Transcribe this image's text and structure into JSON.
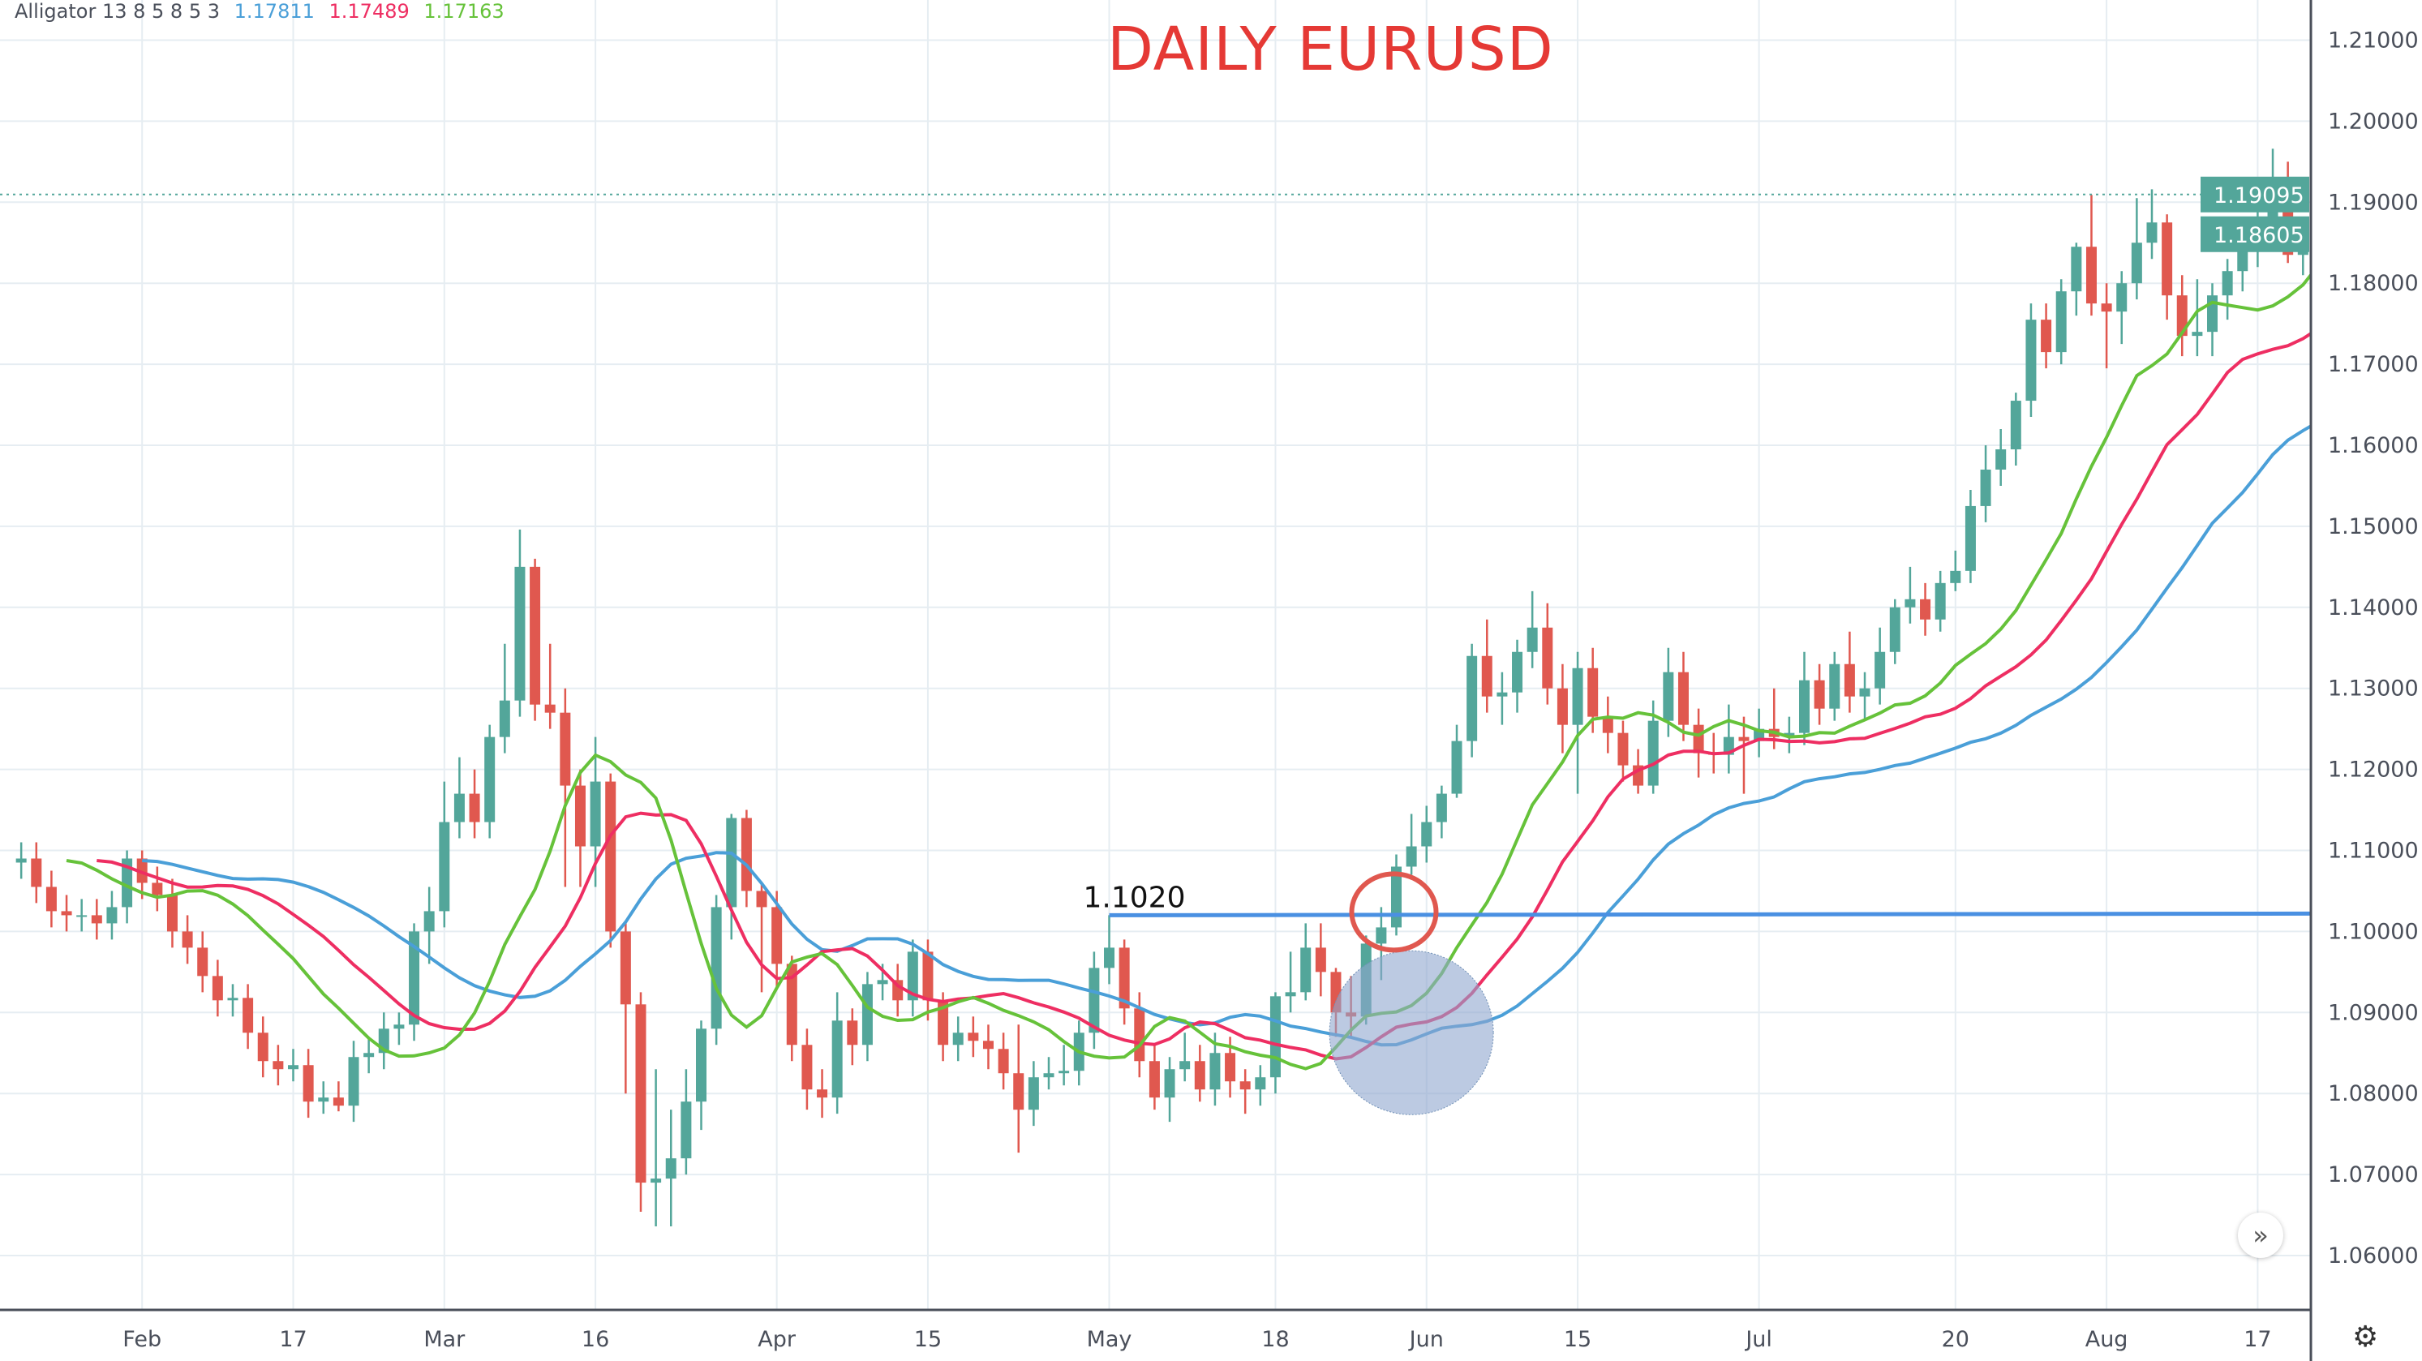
{
  "chart_data": {
    "type": "candlestick",
    "title": "DAILY EURUSD",
    "indicator": {
      "name": "Alligator 13 8 5 8 5 3",
      "jaw": {
        "value": "1.17811",
        "color": "#4a9fd8"
      },
      "teeth": {
        "value": "1.17489",
        "color": "#ee2e62"
      },
      "lips": {
        "value": "1.17163",
        "color": "#66c23a"
      }
    },
    "colors": {
      "up": "#53a69a",
      "down": "#e0584f",
      "grid": "#e6edf2",
      "axis": "#4a4f5a"
    },
    "ylim": [
      1.055,
      1.215
    ],
    "y_ticks": [
      "1.06000",
      "1.07000",
      "1.08000",
      "1.09000",
      "1.10000",
      "1.11000",
      "1.12000",
      "1.13000",
      "1.14000",
      "1.15000",
      "1.16000",
      "1.17000",
      "1.18000",
      "1.19000",
      "1.20000",
      "1.21000"
    ],
    "x_ticks": [
      {
        "label": "Feb",
        "date": "02-03"
      },
      {
        "label": "17",
        "date": "02-17"
      },
      {
        "label": "Mar",
        "date": "03-02"
      },
      {
        "label": "16",
        "date": "03-16"
      },
      {
        "label": "Apr",
        "date": "04-01"
      },
      {
        "label": "15",
        "date": "04-15"
      },
      {
        "label": "May",
        "date": "05-01"
      },
      {
        "label": "18",
        "date": "05-18"
      },
      {
        "label": "Jun",
        "date": "06-01"
      },
      {
        "label": "15",
        "date": "06-15"
      },
      {
        "label": "Jul",
        "date": "07-01"
      },
      {
        "label": "20",
        "date": "07-20"
      },
      {
        "label": "Aug",
        "date": "08-03"
      },
      {
        "label": "17",
        "date": "08-17"
      }
    ],
    "price_labels": [
      {
        "value": "1.19095",
        "price": 1.19095,
        "dotted_line": true
      },
      {
        "value": "1.18605",
        "price": 1.18605,
        "dotted_line": false
      }
    ],
    "annotations": {
      "level": {
        "label": "1.1020",
        "price": 1.102,
        "from_date": "05-01",
        "color": "#4a90e2"
      },
      "ellipse": {
        "date": "05-28",
        "price": 1.102,
        "color": "#e0584f"
      },
      "circle": {
        "date": "05-29",
        "price": 1.0875,
        "color": "#8fa6cf"
      }
    },
    "candles": [
      [
        "01-22",
        1.1085,
        1.111,
        1.1065,
        1.109
      ],
      [
        "01-23",
        1.109,
        1.111,
        1.1035,
        1.1055
      ],
      [
        "01-24",
        1.1055,
        1.1075,
        1.1005,
        1.1025
      ],
      [
        "01-27",
        1.1025,
        1.1045,
        1.1,
        1.102
      ],
      [
        "01-28",
        1.102,
        1.104,
        1.1,
        1.102
      ],
      [
        "01-29",
        1.102,
        1.104,
        1.099,
        1.101
      ],
      [
        "01-30",
        1.101,
        1.105,
        1.099,
        1.103
      ],
      [
        "01-31",
        1.103,
        1.11,
        1.101,
        1.109
      ],
      [
        "02-03",
        1.109,
        1.11,
        1.104,
        1.106
      ],
      [
        "02-04",
        1.106,
        1.108,
        1.1025,
        1.1045
      ],
      [
        "02-05",
        1.1045,
        1.1065,
        1.098,
        1.1
      ],
      [
        "02-06",
        1.1,
        1.102,
        1.096,
        1.098
      ],
      [
        "02-07",
        1.098,
        1.1,
        1.0925,
        1.0945
      ],
      [
        "02-10",
        1.0945,
        1.0965,
        1.0895,
        1.0915
      ],
      [
        "02-11",
        1.0915,
        1.0935,
        1.0895,
        1.0918
      ],
      [
        "02-12",
        1.0918,
        1.0935,
        1.0855,
        1.0875
      ],
      [
        "02-13",
        1.0875,
        1.0895,
        1.082,
        1.084
      ],
      [
        "02-14",
        1.084,
        1.086,
        1.081,
        1.083
      ],
      [
        "02-17",
        1.083,
        1.0855,
        1.0815,
        1.0835
      ],
      [
        "02-18",
        1.0835,
        1.0855,
        1.077,
        1.079
      ],
      [
        "02-19",
        1.079,
        1.0815,
        1.0775,
        1.0795
      ],
      [
        "02-20",
        1.0795,
        1.0815,
        1.0778,
        1.0785
      ],
      [
        "02-21",
        1.0785,
        1.0865,
        1.0765,
        1.0845
      ],
      [
        "02-24",
        1.0845,
        1.087,
        1.0825,
        1.085
      ],
      [
        "02-25",
        1.085,
        1.09,
        1.083,
        1.088
      ],
      [
        "02-26",
        1.088,
        1.09,
        1.086,
        1.0885
      ],
      [
        "02-27",
        1.0885,
        1.101,
        1.0865,
        1.1
      ],
      [
        "02-28",
        1.1,
        1.1055,
        1.096,
        1.1025
      ],
      [
        "03-02",
        1.1025,
        1.1185,
        1.1005,
        1.1135
      ],
      [
        "03-03",
        1.1135,
        1.1215,
        1.1115,
        1.117
      ],
      [
        "03-04",
        1.117,
        1.12,
        1.1115,
        1.1135
      ],
      [
        "03-05",
        1.1135,
        1.1255,
        1.1115,
        1.124
      ],
      [
        "03-06",
        1.124,
        1.1355,
        1.122,
        1.1285
      ],
      [
        "03-09",
        1.1285,
        1.1496,
        1.1265,
        1.145
      ],
      [
        "03-10",
        1.145,
        1.146,
        1.126,
        1.128
      ],
      [
        "03-11",
        1.128,
        1.1355,
        1.125,
        1.127
      ],
      [
        "03-12",
        1.127,
        1.13,
        1.1055,
        1.118
      ],
      [
        "03-13",
        1.118,
        1.12,
        1.1055,
        1.1105
      ],
      [
        "03-16",
        1.1105,
        1.124,
        1.1055,
        1.1185
      ],
      [
        "03-17",
        1.1185,
        1.1195,
        1.098,
        1.1
      ],
      [
        "03-18",
        1.1,
        1.101,
        1.08,
        1.091
      ],
      [
        "03-19",
        1.091,
        1.0925,
        1.0654,
        1.069
      ],
      [
        "03-20",
        1.069,
        1.083,
        1.0636,
        1.0695
      ],
      [
        "03-23",
        1.0695,
        1.078,
        1.0636,
        1.072
      ],
      [
        "03-24",
        1.072,
        1.083,
        1.07,
        1.079
      ],
      [
        "03-25",
        1.079,
        1.089,
        1.0755,
        1.088
      ],
      [
        "03-26",
        1.088,
        1.1045,
        1.086,
        1.103
      ],
      [
        "03-27",
        1.103,
        1.1145,
        1.099,
        1.114
      ],
      [
        "03-30",
        1.114,
        1.115,
        1.103,
        1.105
      ],
      [
        "03-31",
        1.105,
        1.106,
        1.0925,
        1.103
      ],
      [
        "04-01",
        1.103,
        1.105,
        1.093,
        1.096
      ],
      [
        "04-02",
        1.096,
        1.097,
        1.084,
        1.086
      ],
      [
        "04-03",
        1.086,
        1.088,
        1.078,
        1.0805
      ],
      [
        "04-06",
        1.0805,
        1.083,
        1.077,
        1.0795
      ],
      [
        "04-07",
        1.0795,
        1.0925,
        1.0775,
        1.089
      ],
      [
        "04-08",
        1.089,
        1.0905,
        1.0835,
        1.086
      ],
      [
        "04-09",
        1.086,
        1.095,
        1.084,
        1.0935
      ],
      [
        "04-10",
        1.0935,
        1.096,
        1.0915,
        1.094
      ],
      [
        "04-13",
        1.094,
        1.096,
        1.0895,
        1.0915
      ],
      [
        "04-14",
        1.0915,
        1.099,
        1.0895,
        1.0975
      ],
      [
        "04-15",
        1.0975,
        1.099,
        1.089,
        1.0915
      ],
      [
        "04-16",
        1.0915,
        1.0925,
        1.084,
        1.086
      ],
      [
        "04-17",
        1.086,
        1.0895,
        1.084,
        1.0875
      ],
      [
        "04-20",
        1.0875,
        1.0895,
        1.0845,
        1.0865
      ],
      [
        "04-21",
        1.0865,
        1.0885,
        1.083,
        1.0855
      ],
      [
        "04-22",
        1.0855,
        1.0875,
        1.0805,
        1.0825
      ],
      [
        "04-23",
        1.0825,
        1.0885,
        1.0727,
        1.078
      ],
      [
        "04-24",
        1.078,
        1.084,
        1.076,
        1.082
      ],
      [
        "04-27",
        1.082,
        1.0845,
        1.0805,
        1.0825
      ],
      [
        "04-28",
        1.0825,
        1.086,
        1.081,
        1.0828
      ],
      [
        "04-29",
        1.0828,
        1.089,
        1.081,
        1.0875
      ],
      [
        "04-30",
        1.0875,
        1.0975,
        1.0855,
        1.0955
      ],
      [
        "05-01",
        1.0955,
        1.102,
        1.0935,
        1.098
      ],
      [
        "05-04",
        1.098,
        1.099,
        1.0885,
        1.0905
      ],
      [
        "05-05",
        1.0905,
        1.0925,
        1.082,
        1.084
      ],
      [
        "05-06",
        1.084,
        1.086,
        1.078,
        1.0795
      ],
      [
        "05-07",
        1.0795,
        1.0845,
        1.0765,
        1.083
      ],
      [
        "05-08",
        1.083,
        1.0875,
        1.0815,
        1.084
      ],
      [
        "05-11",
        1.084,
        1.086,
        1.079,
        1.0805
      ],
      [
        "05-12",
        1.0805,
        1.0875,
        1.0785,
        1.085
      ],
      [
        "05-13",
        1.085,
        1.087,
        1.0795,
        1.0815
      ],
      [
        "05-14",
        1.0815,
        1.083,
        1.0775,
        1.0805
      ],
      [
        "05-15",
        1.0805,
        1.0835,
        1.0785,
        1.082
      ],
      [
        "05-18",
        1.082,
        1.0925,
        1.08,
        1.092
      ],
      [
        "05-19",
        1.092,
        1.0975,
        1.09,
        1.0925
      ],
      [
        "05-20",
        1.0925,
        1.101,
        1.0915,
        1.098
      ],
      [
        "05-21",
        1.098,
        1.101,
        1.092,
        1.095
      ],
      [
        "05-22",
        1.095,
        1.0955,
        1.087,
        1.09
      ],
      [
        "05-25",
        1.09,
        1.0945,
        1.087,
        1.0895
      ],
      [
        "05-26",
        1.0895,
        1.0995,
        1.0885,
        1.0985
      ],
      [
        "05-27",
        1.0985,
        1.103,
        1.094,
        1.1005
      ],
      [
        "05-28",
        1.1005,
        1.1095,
        1.0995,
        1.108
      ],
      [
        "05-29",
        1.108,
        1.1145,
        1.107,
        1.1105
      ],
      [
        "06-01",
        1.1105,
        1.1155,
        1.1085,
        1.1135
      ],
      [
        "06-02",
        1.1135,
        1.118,
        1.1115,
        1.117
      ],
      [
        "06-03",
        1.117,
        1.1255,
        1.1165,
        1.1235
      ],
      [
        "06-04",
        1.1235,
        1.1355,
        1.1215,
        1.134
      ],
      [
        "06-05",
        1.134,
        1.1385,
        1.127,
        1.129
      ],
      [
        "06-08",
        1.129,
        1.132,
        1.1255,
        1.1295
      ],
      [
        "06-09",
        1.1295,
        1.136,
        1.127,
        1.1345
      ],
      [
        "06-10",
        1.1345,
        1.142,
        1.1325,
        1.1375
      ],
      [
        "06-11",
        1.1375,
        1.1405,
        1.128,
        1.13
      ],
      [
        "06-12",
        1.13,
        1.133,
        1.122,
        1.1255
      ],
      [
        "06-15",
        1.1255,
        1.1345,
        1.117,
        1.1325
      ],
      [
        "06-16",
        1.1325,
        1.135,
        1.1245,
        1.1265
      ],
      [
        "06-17",
        1.1265,
        1.129,
        1.122,
        1.1245
      ],
      [
        "06-18",
        1.1245,
        1.126,
        1.1185,
        1.1205
      ],
      [
        "06-19",
        1.1205,
        1.1225,
        1.117,
        1.118
      ],
      [
        "06-22",
        1.118,
        1.1285,
        1.117,
        1.126
      ],
      [
        "06-23",
        1.126,
        1.135,
        1.124,
        1.132
      ],
      [
        "06-24",
        1.132,
        1.1345,
        1.1235,
        1.1255
      ],
      [
        "06-25",
        1.1255,
        1.1275,
        1.119,
        1.122
      ],
      [
        "06-26",
        1.122,
        1.1245,
        1.1195,
        1.1218
      ],
      [
        "06-29",
        1.1218,
        1.128,
        1.1195,
        1.124
      ],
      [
        "06-30",
        1.124,
        1.1265,
        1.117,
        1.1235
      ],
      [
        "07-01",
        1.1235,
        1.1275,
        1.1215,
        1.125
      ],
      [
        "07-02",
        1.125,
        1.13,
        1.1225,
        1.124
      ],
      [
        "07-03",
        1.124,
        1.1265,
        1.122,
        1.1245
      ],
      [
        "07-06",
        1.1245,
        1.1345,
        1.123,
        1.131
      ],
      [
        "07-07",
        1.131,
        1.133,
        1.1255,
        1.1275
      ],
      [
        "07-08",
        1.1275,
        1.1345,
        1.126,
        1.133
      ],
      [
        "07-09",
        1.133,
        1.137,
        1.127,
        1.129
      ],
      [
        "07-10",
        1.129,
        1.132,
        1.126,
        1.13
      ],
      [
        "07-13",
        1.13,
        1.1375,
        1.128,
        1.1345
      ],
      [
        "07-14",
        1.1345,
        1.141,
        1.133,
        1.14
      ],
      [
        "07-15",
        1.14,
        1.145,
        1.138,
        1.141
      ],
      [
        "07-16",
        1.141,
        1.143,
        1.1365,
        1.1385
      ],
      [
        "07-17",
        1.1385,
        1.1445,
        1.137,
        1.143
      ],
      [
        "07-20",
        1.143,
        1.147,
        1.142,
        1.1445
      ],
      [
        "07-21",
        1.1445,
        1.1545,
        1.143,
        1.1525
      ],
      [
        "07-22",
        1.1525,
        1.16,
        1.1505,
        1.157
      ],
      [
        "07-23",
        1.157,
        1.162,
        1.155,
        1.1595
      ],
      [
        "07-24",
        1.1595,
        1.1665,
        1.1575,
        1.1655
      ],
      [
        "07-27",
        1.1655,
        1.1775,
        1.1635,
        1.1755
      ],
      [
        "07-28",
        1.1755,
        1.1775,
        1.1695,
        1.1715
      ],
      [
        "07-29",
        1.1715,
        1.1805,
        1.17,
        1.179
      ],
      [
        "07-30",
        1.179,
        1.185,
        1.176,
        1.1845
      ],
      [
        "07-31",
        1.1845,
        1.1909,
        1.176,
        1.1775
      ],
      [
        "08-03",
        1.1775,
        1.18,
        1.1695,
        1.1765
      ],
      [
        "08-04",
        1.1765,
        1.1815,
        1.1725,
        1.18
      ],
      [
        "08-05",
        1.18,
        1.1905,
        1.178,
        1.185
      ],
      [
        "08-06",
        1.185,
        1.1916,
        1.183,
        1.1875
      ],
      [
        "08-07",
        1.1875,
        1.1885,
        1.1755,
        1.1785
      ],
      [
        "08-10",
        1.1785,
        1.181,
        1.171,
        1.1735
      ],
      [
        "08-11",
        1.1735,
        1.1805,
        1.171,
        1.174
      ],
      [
        "08-12",
        1.174,
        1.18,
        1.171,
        1.1785
      ],
      [
        "08-13",
        1.1785,
        1.183,
        1.1755,
        1.1815
      ],
      [
        "08-14",
        1.1815,
        1.1865,
        1.179,
        1.184
      ],
      [
        "08-17",
        1.184,
        1.1895,
        1.182,
        1.187
      ],
      [
        "08-18",
        1.187,
        1.1966,
        1.1865,
        1.191
      ],
      [
        "08-19",
        1.191,
        1.195,
        1.1825,
        1.1835
      ],
      [
        "08-20",
        1.1835,
        1.1875,
        1.181,
        1.18605
      ]
    ]
  },
  "controls": {
    "scroll_icon": "double-chevron-right",
    "scroll_label": "»",
    "settings_icon": "gear",
    "settings_label": "⚙"
  }
}
